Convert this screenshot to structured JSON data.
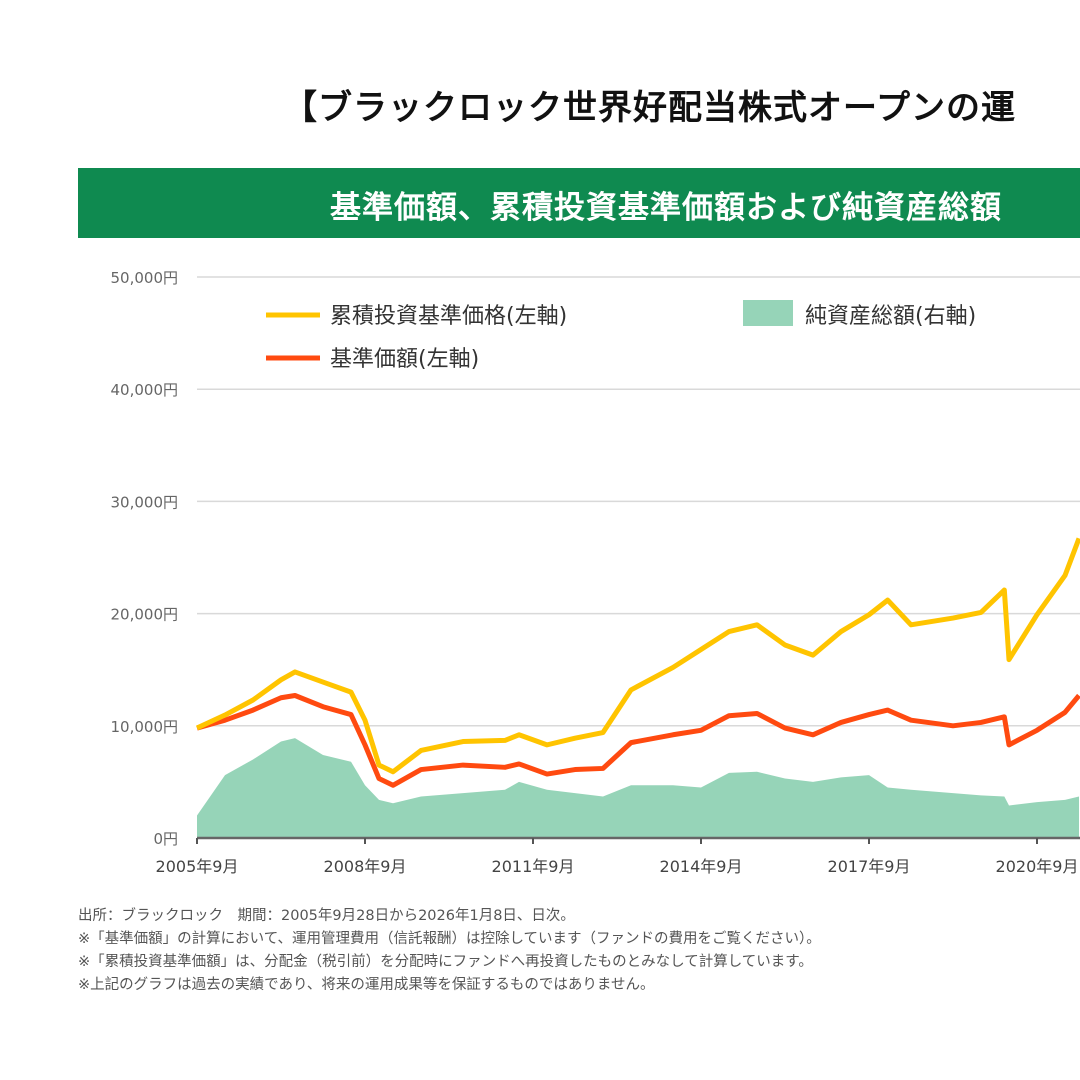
{
  "title": "【ブラックロック世界好配当株式オープンの運",
  "banner": "基準価額、累積投資基準価額および純資産総額",
  "chart_data": {
    "type": "line",
    "y_axis": {
      "ticks": [
        "0円",
        "10,000円",
        "20,000円",
        "30,000円",
        "40,000円",
        "50,000円"
      ],
      "range": [
        0,
        50000
      ],
      "grid": true
    },
    "x_axis": {
      "ticks": [
        "2005年9月",
        "2008年9月",
        "2011年9月",
        "2014年9月",
        "2017年9月",
        "2020年9月"
      ]
    },
    "legend": [
      {
        "label": "累積投資基準価格(左軸)",
        "color": "#ffc400",
        "kind": "line"
      },
      {
        "label": "純資産総額(右軸)",
        "color": "#96d4b8",
        "kind": "area"
      },
      {
        "label": "基準価額(左軸)",
        "color": "#ff4a10",
        "kind": "line"
      }
    ],
    "x": [
      "2005-09",
      "2006-03",
      "2006-09",
      "2007-03",
      "2007-06",
      "2007-12",
      "2008-06",
      "2008-09",
      "2008-12",
      "2009-03",
      "2009-09",
      "2010-06",
      "2011-03",
      "2011-06",
      "2011-12",
      "2012-06",
      "2012-12",
      "2013-06",
      "2014-03",
      "2014-09",
      "2015-03",
      "2015-09",
      "2016-03",
      "2016-09",
      "2017-03",
      "2017-09",
      "2018-01",
      "2018-06",
      "2019-03",
      "2019-09",
      "2020-02",
      "2020-03",
      "2020-09",
      "2021-03",
      "2021-06"
    ],
    "series": [
      {
        "name": "累積投資基準価格(左軸)",
        "values": [
          9800,
          10960,
          12300,
          14100,
          14800,
          13900,
          13000,
          10500,
          6500,
          5900,
          7800,
          8600,
          8700,
          9200,
          8300,
          8900,
          9400,
          13200,
          15200,
          16800,
          18400,
          19000,
          17200,
          16300,
          18400,
          19900,
          21200,
          19000,
          19600,
          20100,
          22100,
          15900,
          19900,
          23400,
          26700
        ]
      },
      {
        "name": "基準価額(左軸)",
        "values": [
          9800,
          10500,
          11400,
          12500,
          12700,
          11700,
          11000,
          8300,
          5300,
          4700,
          6100,
          6500,
          6300,
          6600,
          5700,
          6100,
          6200,
          8500,
          9200,
          9600,
          10900,
          11100,
          9800,
          9200,
          10300,
          11000,
          11400,
          10500,
          10000,
          10300,
          10800,
          8300,
          9600,
          11200,
          12700
        ]
      },
      {
        "name": "純資産総額(右軸)",
        "values_on_left_scale": [
          2000,
          5600,
          7000,
          8600,
          8900,
          7400,
          6800,
          4700,
          3400,
          3100,
          3700,
          4000,
          4300,
          5000,
          4300,
          4000,
          3700,
          4700,
          4700,
          4500,
          5800,
          5900,
          5300,
          5000,
          5400,
          5600,
          4500,
          4300,
          4000,
          3800,
          3700,
          2900,
          3200,
          3400,
          3700
        ]
      }
    ]
  },
  "notes": [
    "出所：ブラックロック　期間：2005年9月28日から2026年1月8日、日次。",
    "※「基準価額」の計算において、運用管理費用（信託報酬）は控除しています（ファンドの費用をご覧ください）。",
    "※「累積投資基準価額」は、分配金（税引前）を分配時にファンドへ再投資したものとみなして計算しています。",
    "※上記のグラフは過去の実績であり、将来の運用成果等を保証するものではありません。"
  ]
}
